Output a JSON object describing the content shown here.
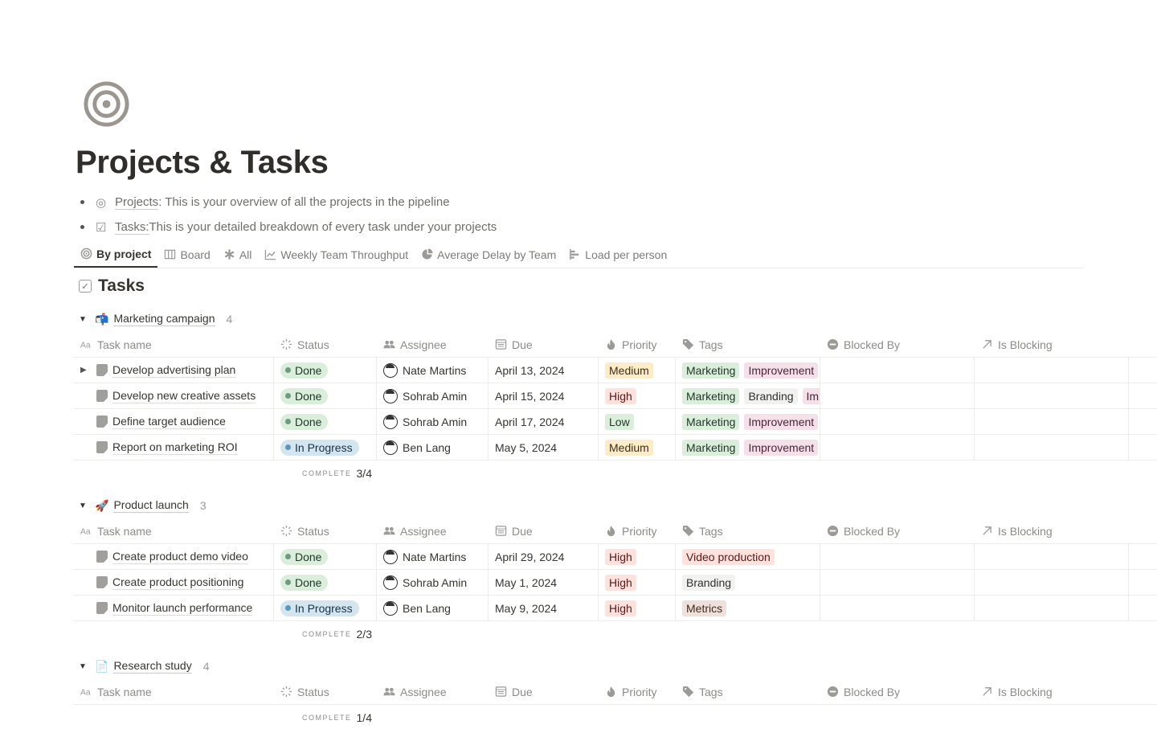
{
  "page": {
    "icon": "target-icon",
    "title": "Projects & Tasks",
    "bullets": [
      {
        "icon": "projects-link-icon",
        "link": "Projects",
        "text": ": This is your overview of all the projects in the pipeline"
      },
      {
        "icon": "tasks-link-icon",
        "link": "Tasks:",
        "text": " This is your detailed breakdown of every task under your projects"
      }
    ]
  },
  "views": [
    {
      "label": "By project",
      "icon": "target-icon",
      "active": true
    },
    {
      "label": "Board",
      "icon": "board-icon"
    },
    {
      "label": "All",
      "icon": "asterisk-icon"
    },
    {
      "label": "Weekly Team Throughput",
      "icon": "line-chart-icon"
    },
    {
      "label": "Average Delay by Team",
      "icon": "pie-chart-icon"
    },
    {
      "label": "Load per person",
      "icon": "bar-chart-icon"
    }
  ],
  "database": {
    "title": "Tasks",
    "icon": "checkbox-icon"
  },
  "columns": [
    {
      "label": "Task name",
      "icon": "text-icon"
    },
    {
      "label": "Status",
      "icon": "status-icon"
    },
    {
      "label": "Assignee",
      "icon": "people-icon"
    },
    {
      "label": "Due",
      "icon": "calendar-icon"
    },
    {
      "label": "Priority",
      "icon": "fire-icon"
    },
    {
      "label": "Tags",
      "icon": "tag-icon"
    },
    {
      "label": "Blocked By",
      "icon": "blocked-icon"
    },
    {
      "label": "Is Blocking",
      "icon": "arrow-up-right-icon"
    }
  ],
  "complete_label": "COMPLETE",
  "colors": {
    "Done": {
      "bg": "#dbeddb",
      "dot": "#6c9b7d",
      "fg": "#1c3829"
    },
    "In Progress": {
      "bg": "#d3e5ef",
      "dot": "#5b97bd",
      "fg": "#183347"
    },
    "Medium": {
      "bg": "#fdecc8",
      "fg": "#402c1b"
    },
    "High": {
      "bg": "#ffe2dd",
      "fg": "#5d1715"
    },
    "Low": {
      "bg": "#dbeddb",
      "fg": "#1c3829"
    },
    "Marketing": {
      "bg": "#dbeddb",
      "fg": "#1c3829"
    },
    "Improvement": {
      "bg": "#f5e0e9",
      "fg": "#4c2337"
    },
    "Branding": {
      "bg": "#f1f1ef",
      "fg": "#32302c"
    },
    "Video production": {
      "bg": "#ffe2dd",
      "fg": "#5d1715"
    },
    "Metrics": {
      "bg": "#eee0da",
      "fg": "#442a1e"
    }
  },
  "groups": [
    {
      "name": "Marketing campaign",
      "emoji": "📬",
      "count": "4",
      "complete": "3/4",
      "rows": [
        {
          "name": "Develop advertising plan",
          "expandable": true,
          "status": "Done",
          "assignee": "Nate Martins",
          "due": "April 13, 2024",
          "priority": "Medium",
          "tags": [
            "Marketing",
            "Improvement"
          ]
        },
        {
          "name": "Develop new creative assets",
          "status": "Done",
          "assignee": "Sohrab Amin",
          "due": "April 15, 2024",
          "priority": "High",
          "tags": [
            "Marketing",
            "Branding",
            "Improvement"
          ]
        },
        {
          "name": "Define target audience",
          "status": "Done",
          "assignee": "Sohrab Amin",
          "due": "April 17, 2024",
          "priority": "Low",
          "tags": [
            "Marketing",
            "Improvement"
          ]
        },
        {
          "name": "Report on marketing ROI",
          "status": "In Progress",
          "assignee": "Ben Lang",
          "due": "May 5, 2024",
          "priority": "Medium",
          "tags": [
            "Marketing",
            "Improvement"
          ]
        }
      ]
    },
    {
      "name": "Product launch",
      "emoji": "🚀",
      "count": "3",
      "complete": "2/3",
      "rows": [
        {
          "name": "Create product demo video",
          "status": "Done",
          "assignee": "Nate Martins",
          "due": "April 29, 2024",
          "priority": "High",
          "tags": [
            "Video production"
          ]
        },
        {
          "name": "Create product positioning",
          "status": "Done",
          "assignee": "Sohrab Amin",
          "due": "May 1, 2024",
          "priority": "High",
          "tags": [
            "Branding"
          ]
        },
        {
          "name": "Monitor launch performance",
          "status": "In Progress",
          "assignee": "Ben Lang",
          "due": "May 9, 2024",
          "priority": "High",
          "tags": [
            "Metrics"
          ]
        }
      ]
    },
    {
      "name": "Research study",
      "emoji": "📄",
      "count": "4",
      "complete": "1/4",
      "rows": []
    }
  ]
}
